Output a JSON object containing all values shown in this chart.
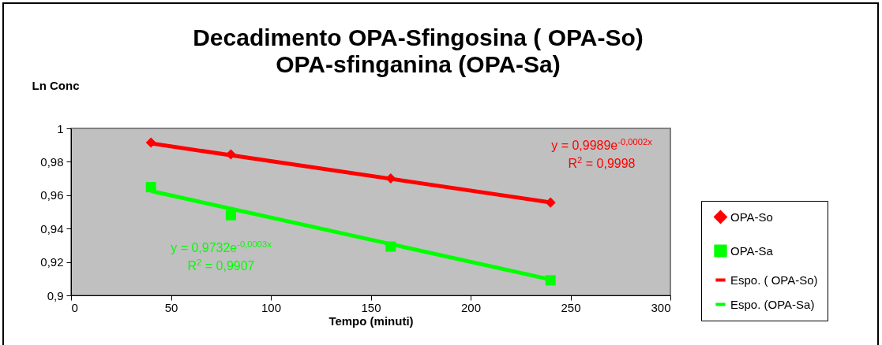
{
  "chart_data": {
    "type": "scatter",
    "title": "Decadimento OPA-Sfingosina ( OPA-So)\nOPA-sfinganina (OPA-Sa)",
    "xlabel": "Tempo (minuti)",
    "ylabel": "Ln Conc",
    "series": [
      {
        "name": "OPA-So",
        "marker": "diamond",
        "color": "#ff0000",
        "x": [
          40,
          80,
          160,
          240
        ],
        "values": [
          0.9915,
          0.9844,
          0.97,
          0.9556
        ]
      },
      {
        "name": "OPA-Sa",
        "marker": "square",
        "color": "#00ff00",
        "x": [
          40,
          80,
          160,
          240
        ],
        "values": [
          0.9648,
          0.948,
          0.9292,
          0.909
        ]
      },
      {
        "name": "Espo. ( OPA-So)",
        "type": "line",
        "color": "#ff0000",
        "x": [
          40,
          240
        ],
        "values": [
          0.991,
          0.9557
        ]
      },
      {
        "name": "Espo. (OPA-Sa)",
        "type": "line",
        "color": "#00ff00",
        "x": [
          40,
          240
        ],
        "values": [
          0.9625,
          0.9095
        ]
      }
    ],
    "annotations": [
      "y = 0,9989e$^{-0,0002x}$",
      "R$^{2}$ = 0,9998",
      "y = 0,9732e$^{-0,0003x}$",
      "R$^{2}$ = 0,9907"
    ],
    "xlim": [
      0,
      300
    ],
    "xticks": [
      0,
      50,
      100,
      150,
      200,
      250,
      300
    ],
    "ylim": [
      0.9,
      1
    ],
    "yticks": [
      {
        "value": 0.9,
        "label": "0,9"
      },
      {
        "value": 0.92,
        "label": "0,92"
      },
      {
        "value": 0.94,
        "label": "0,94"
      },
      {
        "value": 0.96,
        "label": "0,96"
      },
      {
        "value": 0.98,
        "label": "0,98"
      },
      {
        "value": 1,
        "label": "1"
      }
    ],
    "grid": false,
    "legend": "right"
  }
}
